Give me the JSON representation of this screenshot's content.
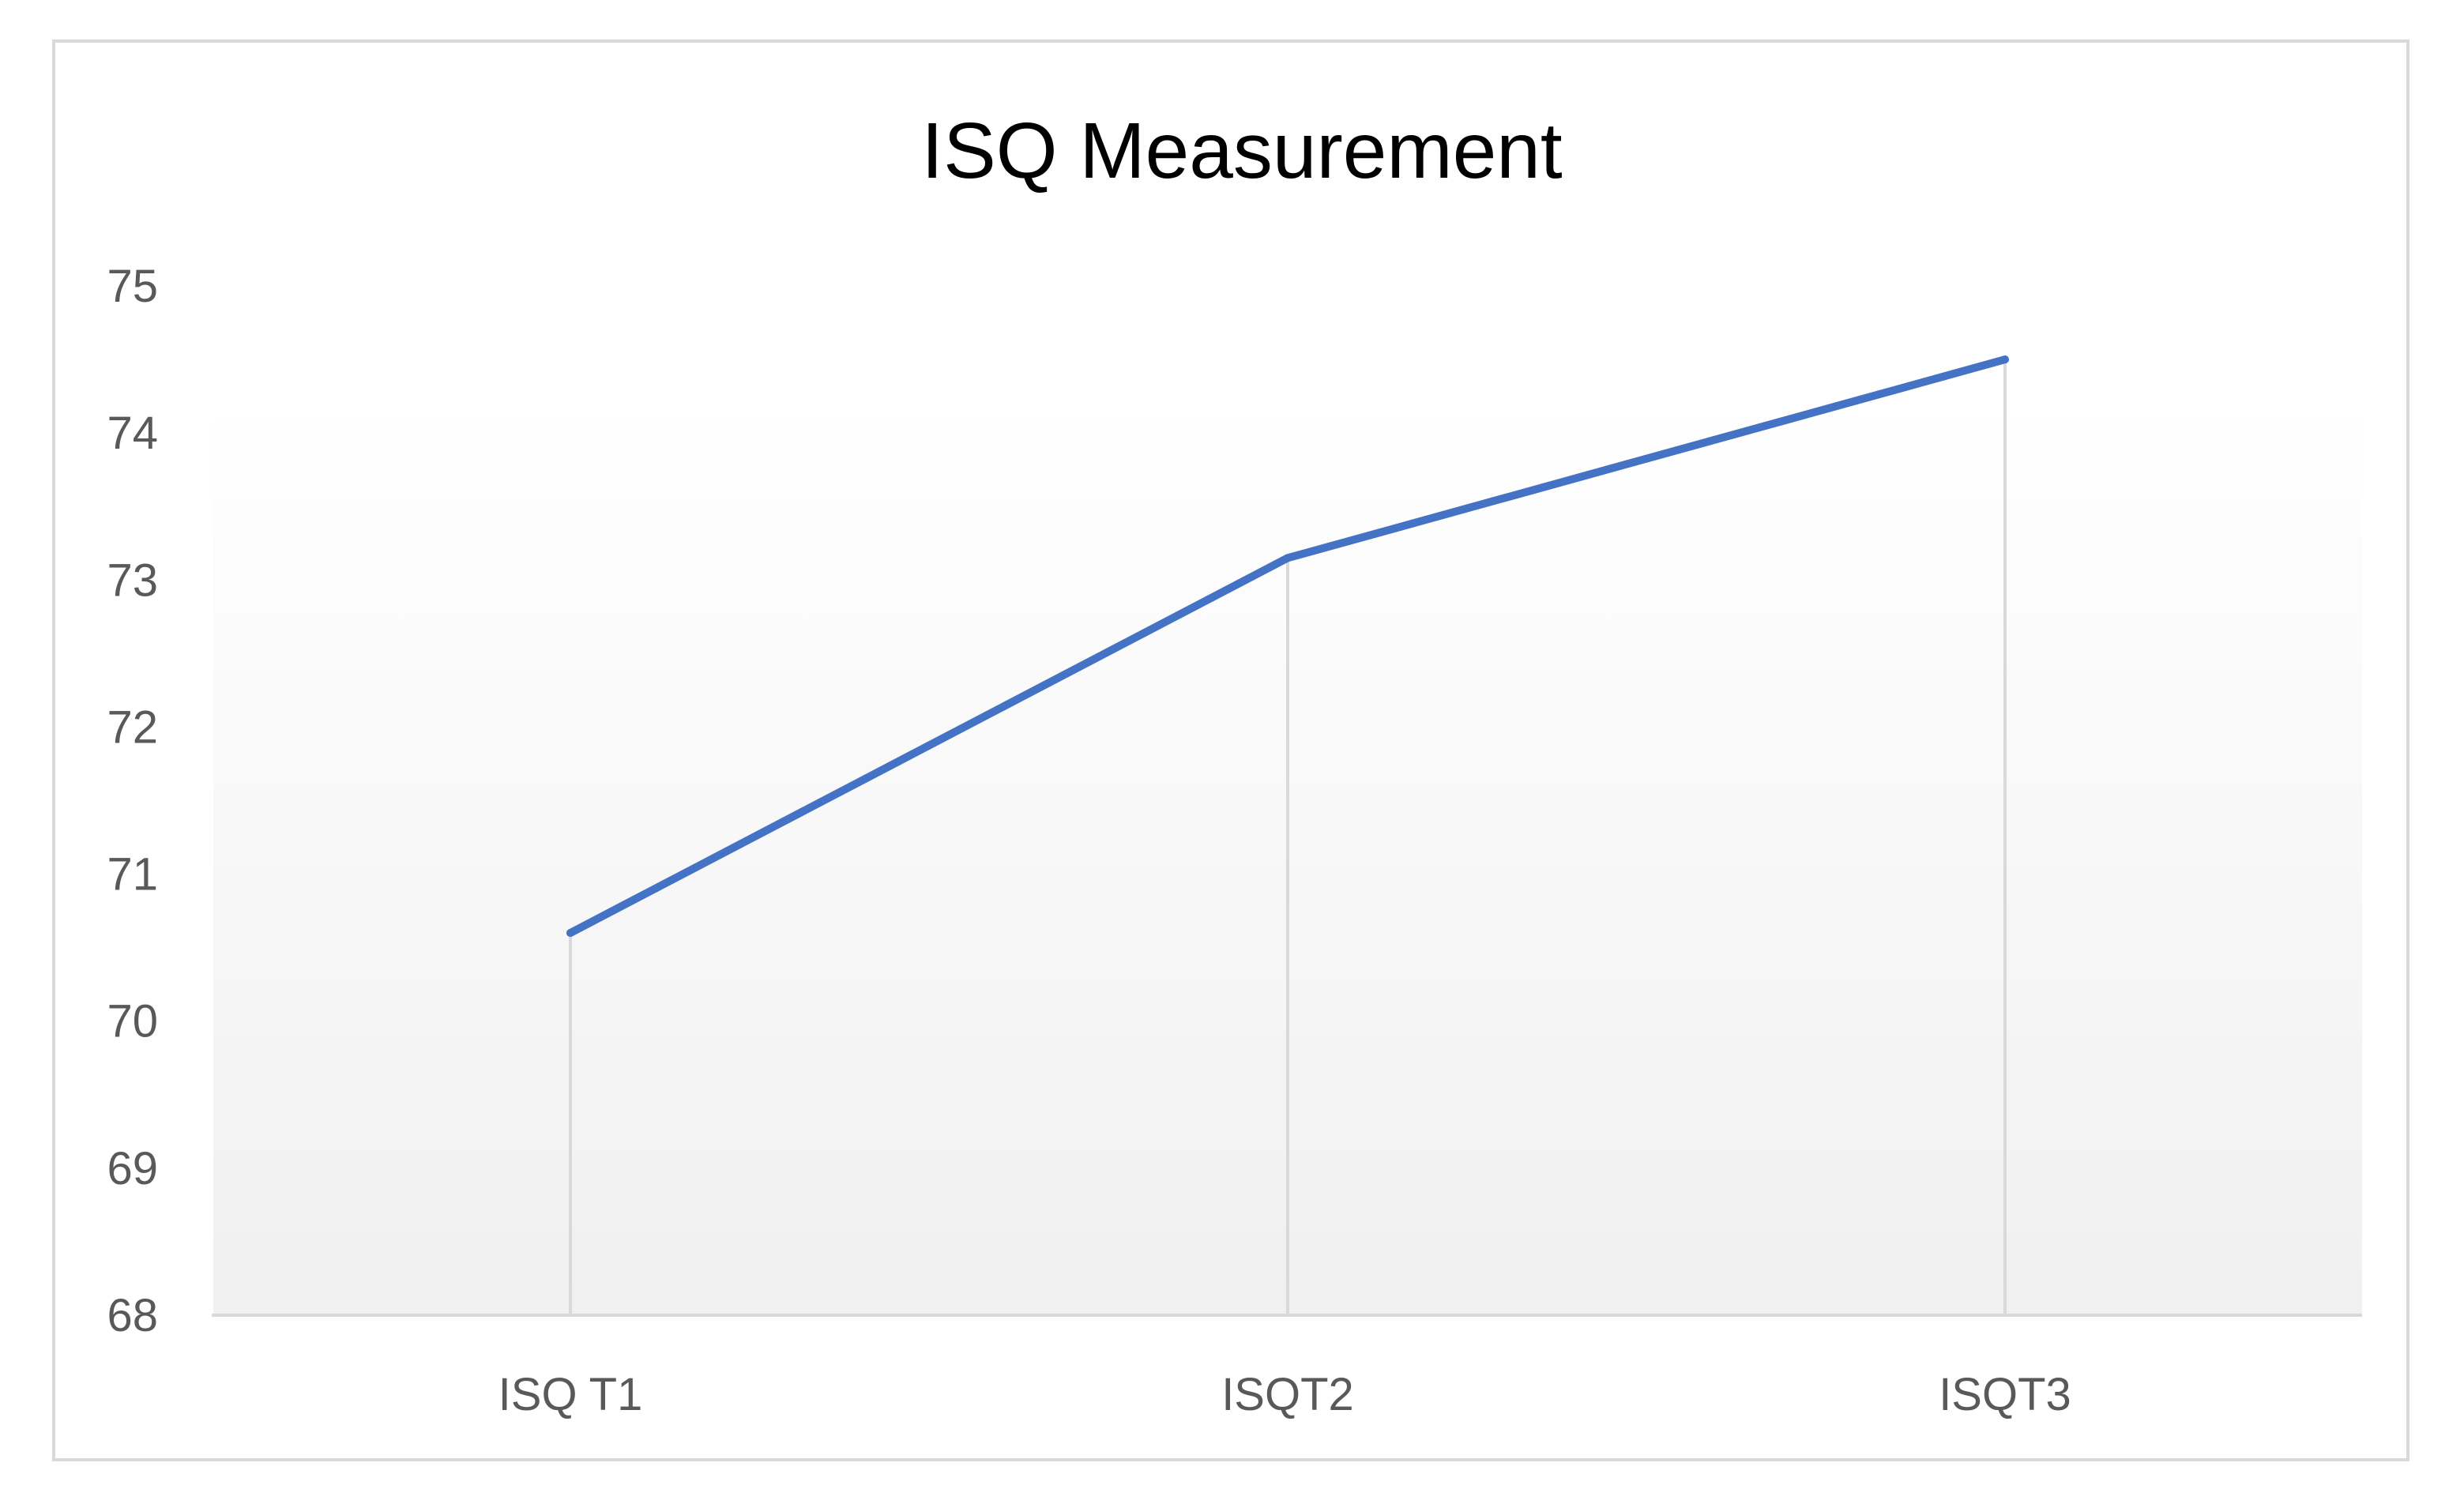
{
  "chart_data": {
    "type": "line",
    "title": "ISQ Measurement",
    "xlabel": "",
    "ylabel": "",
    "categories": [
      "ISQ T1",
      "ISQT2",
      "ISQT3"
    ],
    "series": [
      {
        "values": [
          70.6,
          73.15,
          74.5
        ],
        "color": "#4472C4"
      }
    ],
    "ylim": [
      68,
      75
    ],
    "yticks": [
      68,
      69,
      70,
      71,
      72,
      73,
      74,
      75
    ],
    "drop_lines": true,
    "legend": "none",
    "grid": false
  }
}
